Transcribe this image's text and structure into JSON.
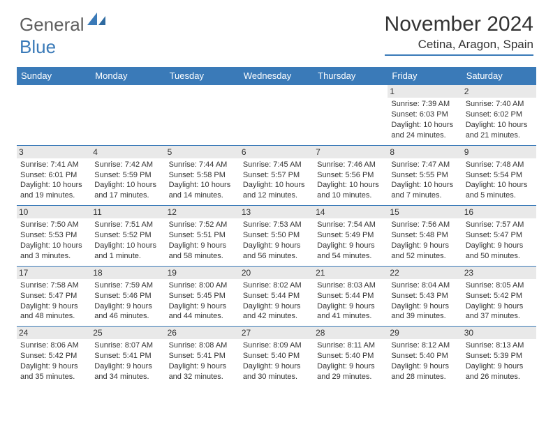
{
  "logo": {
    "textA": "General",
    "textB": "Blue"
  },
  "title": "November 2024",
  "location": "Cetina, Aragon, Spain",
  "colors": {
    "brand": "#3a7ab8",
    "header_bg": "#3a7ab8",
    "daynum_bg": "#e9e9e9",
    "text": "#333333",
    "logo_gray": "#5f5f5f"
  },
  "dayHeaders": [
    "Sunday",
    "Monday",
    "Tuesday",
    "Wednesday",
    "Thursday",
    "Friday",
    "Saturday"
  ],
  "weeks": [
    [
      null,
      null,
      null,
      null,
      null,
      {
        "n": "1",
        "sr": "Sunrise: 7:39 AM",
        "ss": "Sunset: 6:03 PM",
        "dl": "Daylight: 10 hours and 24 minutes."
      },
      {
        "n": "2",
        "sr": "Sunrise: 7:40 AM",
        "ss": "Sunset: 6:02 PM",
        "dl": "Daylight: 10 hours and 21 minutes."
      }
    ],
    [
      {
        "n": "3",
        "sr": "Sunrise: 7:41 AM",
        "ss": "Sunset: 6:01 PM",
        "dl": "Daylight: 10 hours and 19 minutes."
      },
      {
        "n": "4",
        "sr": "Sunrise: 7:42 AM",
        "ss": "Sunset: 5:59 PM",
        "dl": "Daylight: 10 hours and 17 minutes."
      },
      {
        "n": "5",
        "sr": "Sunrise: 7:44 AM",
        "ss": "Sunset: 5:58 PM",
        "dl": "Daylight: 10 hours and 14 minutes."
      },
      {
        "n": "6",
        "sr": "Sunrise: 7:45 AM",
        "ss": "Sunset: 5:57 PM",
        "dl": "Daylight: 10 hours and 12 minutes."
      },
      {
        "n": "7",
        "sr": "Sunrise: 7:46 AM",
        "ss": "Sunset: 5:56 PM",
        "dl": "Daylight: 10 hours and 10 minutes."
      },
      {
        "n": "8",
        "sr": "Sunrise: 7:47 AM",
        "ss": "Sunset: 5:55 PM",
        "dl": "Daylight: 10 hours and 7 minutes."
      },
      {
        "n": "9",
        "sr": "Sunrise: 7:48 AM",
        "ss": "Sunset: 5:54 PM",
        "dl": "Daylight: 10 hours and 5 minutes."
      }
    ],
    [
      {
        "n": "10",
        "sr": "Sunrise: 7:50 AM",
        "ss": "Sunset: 5:53 PM",
        "dl": "Daylight: 10 hours and 3 minutes."
      },
      {
        "n": "11",
        "sr": "Sunrise: 7:51 AM",
        "ss": "Sunset: 5:52 PM",
        "dl": "Daylight: 10 hours and 1 minute."
      },
      {
        "n": "12",
        "sr": "Sunrise: 7:52 AM",
        "ss": "Sunset: 5:51 PM",
        "dl": "Daylight: 9 hours and 58 minutes."
      },
      {
        "n": "13",
        "sr": "Sunrise: 7:53 AM",
        "ss": "Sunset: 5:50 PM",
        "dl": "Daylight: 9 hours and 56 minutes."
      },
      {
        "n": "14",
        "sr": "Sunrise: 7:54 AM",
        "ss": "Sunset: 5:49 PM",
        "dl": "Daylight: 9 hours and 54 minutes."
      },
      {
        "n": "15",
        "sr": "Sunrise: 7:56 AM",
        "ss": "Sunset: 5:48 PM",
        "dl": "Daylight: 9 hours and 52 minutes."
      },
      {
        "n": "16",
        "sr": "Sunrise: 7:57 AM",
        "ss": "Sunset: 5:47 PM",
        "dl": "Daylight: 9 hours and 50 minutes."
      }
    ],
    [
      {
        "n": "17",
        "sr": "Sunrise: 7:58 AM",
        "ss": "Sunset: 5:47 PM",
        "dl": "Daylight: 9 hours and 48 minutes."
      },
      {
        "n": "18",
        "sr": "Sunrise: 7:59 AM",
        "ss": "Sunset: 5:46 PM",
        "dl": "Daylight: 9 hours and 46 minutes."
      },
      {
        "n": "19",
        "sr": "Sunrise: 8:00 AM",
        "ss": "Sunset: 5:45 PM",
        "dl": "Daylight: 9 hours and 44 minutes."
      },
      {
        "n": "20",
        "sr": "Sunrise: 8:02 AM",
        "ss": "Sunset: 5:44 PM",
        "dl": "Daylight: 9 hours and 42 minutes."
      },
      {
        "n": "21",
        "sr": "Sunrise: 8:03 AM",
        "ss": "Sunset: 5:44 PM",
        "dl": "Daylight: 9 hours and 41 minutes."
      },
      {
        "n": "22",
        "sr": "Sunrise: 8:04 AM",
        "ss": "Sunset: 5:43 PM",
        "dl": "Daylight: 9 hours and 39 minutes."
      },
      {
        "n": "23",
        "sr": "Sunrise: 8:05 AM",
        "ss": "Sunset: 5:42 PM",
        "dl": "Daylight: 9 hours and 37 minutes."
      }
    ],
    [
      {
        "n": "24",
        "sr": "Sunrise: 8:06 AM",
        "ss": "Sunset: 5:42 PM",
        "dl": "Daylight: 9 hours and 35 minutes."
      },
      {
        "n": "25",
        "sr": "Sunrise: 8:07 AM",
        "ss": "Sunset: 5:41 PM",
        "dl": "Daylight: 9 hours and 34 minutes."
      },
      {
        "n": "26",
        "sr": "Sunrise: 8:08 AM",
        "ss": "Sunset: 5:41 PM",
        "dl": "Daylight: 9 hours and 32 minutes."
      },
      {
        "n": "27",
        "sr": "Sunrise: 8:09 AM",
        "ss": "Sunset: 5:40 PM",
        "dl": "Daylight: 9 hours and 30 minutes."
      },
      {
        "n": "28",
        "sr": "Sunrise: 8:11 AM",
        "ss": "Sunset: 5:40 PM",
        "dl": "Daylight: 9 hours and 29 minutes."
      },
      {
        "n": "29",
        "sr": "Sunrise: 8:12 AM",
        "ss": "Sunset: 5:40 PM",
        "dl": "Daylight: 9 hours and 28 minutes."
      },
      {
        "n": "30",
        "sr": "Sunrise: 8:13 AM",
        "ss": "Sunset: 5:39 PM",
        "dl": "Daylight: 9 hours and 26 minutes."
      }
    ]
  ]
}
